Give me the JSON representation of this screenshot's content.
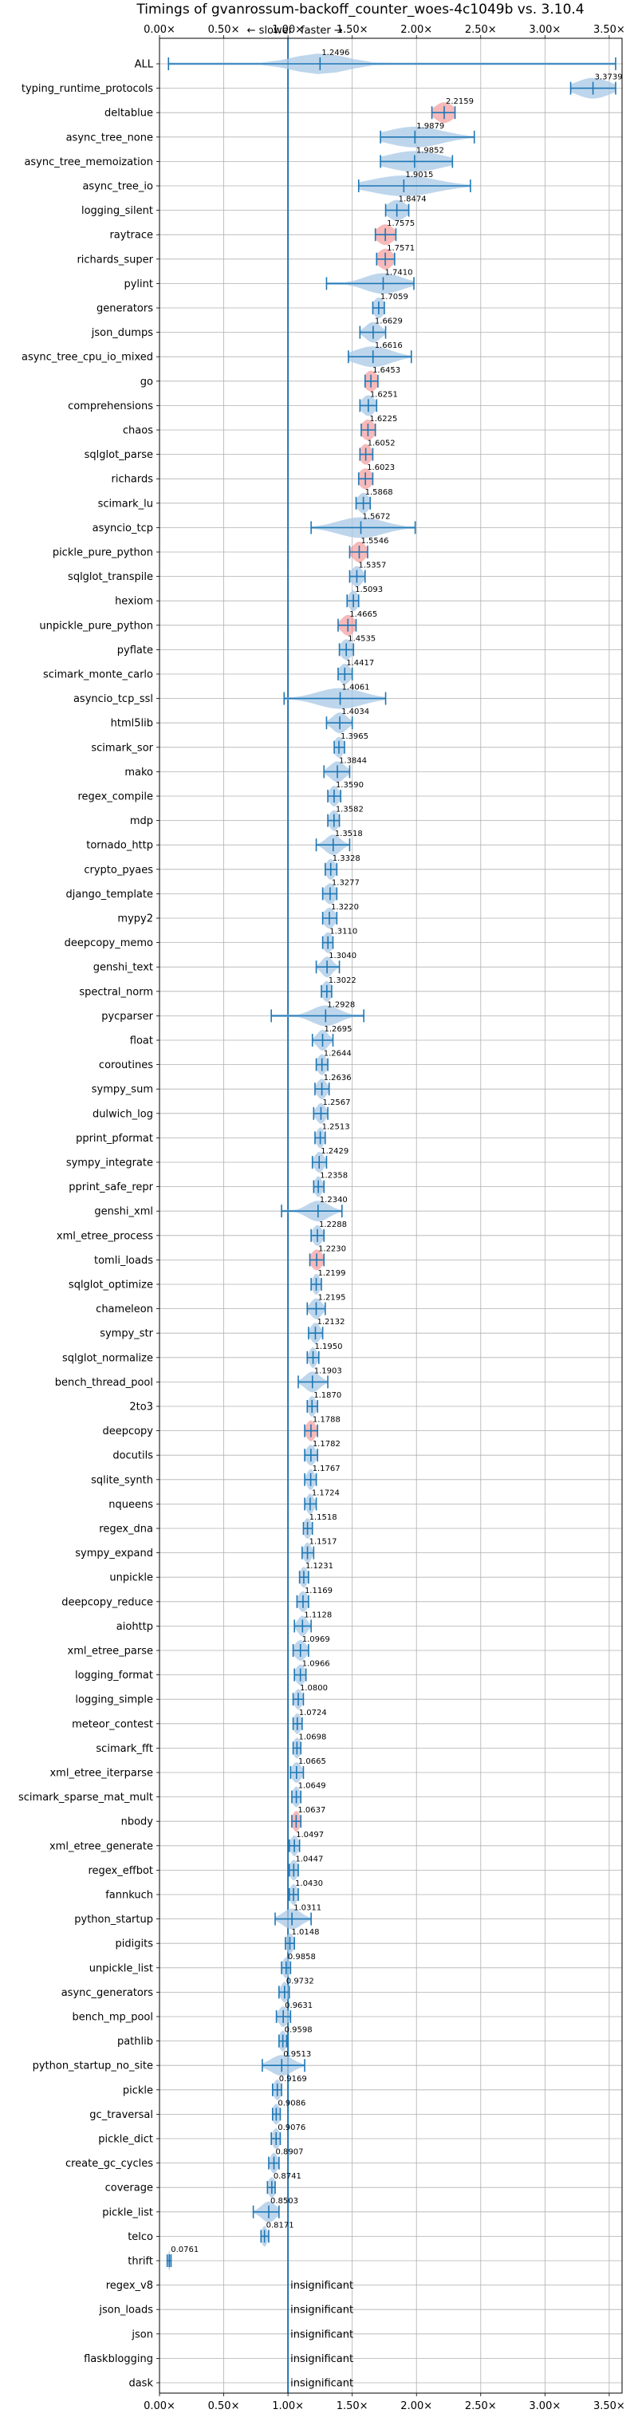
{
  "chart_data": {
    "type": "violin",
    "title": "Timings of gvanrossum-backoff_counter_woes-4c1049b vs. 3.10.4",
    "annotation_left": "← slower",
    "annotation_right": "faster →",
    "xlim": [
      0.0,
      3.6
    ],
    "xticks": [
      0.0,
      0.5,
      1.0,
      1.5,
      2.0,
      2.5,
      3.0,
      3.5
    ],
    "xtick_labels": [
      "0.00×",
      "0.50×",
      "1.00×",
      "1.50×",
      "2.00×",
      "2.50×",
      "3.00×",
      "3.50×"
    ],
    "reference_line": 1.0,
    "grid": true,
    "insignificant_label": "insignificant",
    "colors": {
      "violin": "#a8c8e6",
      "line": "#1f77b4",
      "highlight": "#f08080"
    },
    "benchmarks": [
      {
        "name": "ALL",
        "label": "1.2496",
        "value": 1.2496,
        "min": 0.07,
        "max": 3.55,
        "spread": 0.3,
        "highlight": false
      },
      {
        "name": "typing_runtime_protocols",
        "label": "3.3739",
        "value": 3.3739,
        "min": 3.2,
        "max": 3.55,
        "spread": 0.18,
        "highlight": false
      },
      {
        "name": "deltablue",
        "label": "2.2159",
        "value": 2.2159,
        "min": 2.12,
        "max": 2.3,
        "spread": 0.1,
        "highlight": true
      },
      {
        "name": "async_tree_none",
        "label": "1.9879",
        "value": 1.9879,
        "min": 1.72,
        "max": 2.45,
        "spread": 0.3,
        "highlight": false
      },
      {
        "name": "async_tree_memoization",
        "label": "1.9852",
        "value": 1.9852,
        "min": 1.72,
        "max": 2.28,
        "spread": 0.3,
        "highlight": false
      },
      {
        "name": "async_tree_io",
        "label": "1.9015",
        "value": 1.9015,
        "min": 1.55,
        "max": 2.42,
        "spread": 0.35,
        "highlight": false
      },
      {
        "name": "logging_silent",
        "label": "1.8474",
        "value": 1.8474,
        "min": 1.76,
        "max": 1.94,
        "spread": 0.1,
        "highlight": false
      },
      {
        "name": "raytrace",
        "label": "1.7575",
        "value": 1.7575,
        "min": 1.68,
        "max": 1.84,
        "spread": 0.09,
        "highlight": true
      },
      {
        "name": "richards_super",
        "label": "1.7571",
        "value": 1.7571,
        "min": 1.69,
        "max": 1.83,
        "spread": 0.08,
        "highlight": true
      },
      {
        "name": "pylint",
        "label": "1.7410",
        "value": 1.741,
        "min": 1.3,
        "max": 1.98,
        "spread": 0.2,
        "highlight": false
      },
      {
        "name": "generators",
        "label": "1.7059",
        "value": 1.7059,
        "min": 1.66,
        "max": 1.75,
        "spread": 0.06,
        "highlight": false
      },
      {
        "name": "json_dumps",
        "label": "1.6629",
        "value": 1.6629,
        "min": 1.56,
        "max": 1.76,
        "spread": 0.08,
        "highlight": false
      },
      {
        "name": "async_tree_cpu_io_mixed",
        "label": "1.6616",
        "value": 1.6616,
        "min": 1.47,
        "max": 1.96,
        "spread": 0.2,
        "highlight": false
      },
      {
        "name": "go",
        "label": "1.6453",
        "value": 1.6453,
        "min": 1.6,
        "max": 1.7,
        "spread": 0.07,
        "highlight": true
      },
      {
        "name": "comprehensions",
        "label": "1.6251",
        "value": 1.6251,
        "min": 1.56,
        "max": 1.69,
        "spread": 0.07,
        "highlight": false
      },
      {
        "name": "chaos",
        "label": "1.6225",
        "value": 1.6225,
        "min": 1.57,
        "max": 1.68,
        "spread": 0.07,
        "highlight": true
      },
      {
        "name": "sqlglot_parse",
        "label": "1.6052",
        "value": 1.6052,
        "min": 1.56,
        "max": 1.66,
        "spread": 0.06,
        "highlight": true
      },
      {
        "name": "richards",
        "label": "1.6023",
        "value": 1.6023,
        "min": 1.55,
        "max": 1.66,
        "spread": 0.07,
        "highlight": true
      },
      {
        "name": "scimark_lu",
        "label": "1.5868",
        "value": 1.5868,
        "min": 1.53,
        "max": 1.64,
        "spread": 0.06,
        "highlight": false
      },
      {
        "name": "asyncio_tcp",
        "label": "1.5672",
        "value": 1.5672,
        "min": 1.18,
        "max": 1.99,
        "spread": 0.25,
        "highlight": false
      },
      {
        "name": "pickle_pure_python",
        "label": "1.5546",
        "value": 1.5546,
        "min": 1.48,
        "max": 1.62,
        "spread": 0.07,
        "highlight": true
      },
      {
        "name": "sqlglot_transpile",
        "label": "1.5357",
        "value": 1.5357,
        "min": 1.48,
        "max": 1.6,
        "spread": 0.06,
        "highlight": false
      },
      {
        "name": "hexiom",
        "label": "1.5093",
        "value": 1.5093,
        "min": 1.46,
        "max": 1.55,
        "spread": 0.05,
        "highlight": false
      },
      {
        "name": "unpickle_pure_python",
        "label": "1.4665",
        "value": 1.4665,
        "min": 1.39,
        "max": 1.53,
        "spread": 0.07,
        "highlight": true
      },
      {
        "name": "pyflate",
        "label": "1.4535",
        "value": 1.4535,
        "min": 1.4,
        "max": 1.51,
        "spread": 0.06,
        "highlight": false
      },
      {
        "name": "scimark_monte_carlo",
        "label": "1.4417",
        "value": 1.4417,
        "min": 1.39,
        "max": 1.5,
        "spread": 0.06,
        "highlight": false
      },
      {
        "name": "asyncio_tcp_ssl",
        "label": "1.4061",
        "value": 1.4061,
        "min": 0.97,
        "max": 1.76,
        "spread": 0.25,
        "highlight": false
      },
      {
        "name": "html5lib",
        "label": "1.4034",
        "value": 1.4034,
        "min": 1.3,
        "max": 1.5,
        "spread": 0.08,
        "highlight": false
      },
      {
        "name": "scimark_sor",
        "label": "1.3965",
        "value": 1.3965,
        "min": 1.36,
        "max": 1.44,
        "spread": 0.05,
        "highlight": false
      },
      {
        "name": "mako",
        "label": "1.3844",
        "value": 1.3844,
        "min": 1.28,
        "max": 1.48,
        "spread": 0.08,
        "highlight": false
      },
      {
        "name": "regex_compile",
        "label": "1.3590",
        "value": 1.359,
        "min": 1.31,
        "max": 1.41,
        "spread": 0.05,
        "highlight": false
      },
      {
        "name": "mdp",
        "label": "1.3582",
        "value": 1.3582,
        "min": 1.31,
        "max": 1.4,
        "spread": 0.05,
        "highlight": false
      },
      {
        "name": "tornado_http",
        "label": "1.3518",
        "value": 1.3518,
        "min": 1.22,
        "max": 1.48,
        "spread": 0.08,
        "highlight": false
      },
      {
        "name": "crypto_pyaes",
        "label": "1.3328",
        "value": 1.3328,
        "min": 1.29,
        "max": 1.38,
        "spread": 0.05,
        "highlight": false
      },
      {
        "name": "django_template",
        "label": "1.3277",
        "value": 1.3277,
        "min": 1.27,
        "max": 1.38,
        "spread": 0.06,
        "highlight": false
      },
      {
        "name": "mypy2",
        "label": "1.3220",
        "value": 1.322,
        "min": 1.27,
        "max": 1.38,
        "spread": 0.06,
        "highlight": false
      },
      {
        "name": "deepcopy_memo",
        "label": "1.3110",
        "value": 1.311,
        "min": 1.27,
        "max": 1.35,
        "spread": 0.05,
        "highlight": false
      },
      {
        "name": "genshi_text",
        "label": "1.3040",
        "value": 1.304,
        "min": 1.22,
        "max": 1.4,
        "spread": 0.06,
        "highlight": false
      },
      {
        "name": "spectral_norm",
        "label": "1.3022",
        "value": 1.3022,
        "min": 1.26,
        "max": 1.34,
        "spread": 0.05,
        "highlight": false
      },
      {
        "name": "pycparser",
        "label": "1.2928",
        "value": 1.2928,
        "min": 0.87,
        "max": 1.59,
        "spread": 0.15,
        "highlight": false
      },
      {
        "name": "float",
        "label": "1.2695",
        "value": 1.2695,
        "min": 1.19,
        "max": 1.35,
        "spread": 0.06,
        "highlight": false
      },
      {
        "name": "coroutines",
        "label": "1.2644",
        "value": 1.2644,
        "min": 1.22,
        "max": 1.31,
        "spread": 0.05,
        "highlight": false
      },
      {
        "name": "sympy_sum",
        "label": "1.2636",
        "value": 1.2636,
        "min": 1.21,
        "max": 1.32,
        "spread": 0.05,
        "highlight": false
      },
      {
        "name": "dulwich_log",
        "label": "1.2567",
        "value": 1.2567,
        "min": 1.2,
        "max": 1.31,
        "spread": 0.05,
        "highlight": false
      },
      {
        "name": "pprint_pformat",
        "label": "1.2513",
        "value": 1.2513,
        "min": 1.21,
        "max": 1.29,
        "spread": 0.04,
        "highlight": false
      },
      {
        "name": "sympy_integrate",
        "label": "1.2429",
        "value": 1.2429,
        "min": 1.19,
        "max": 1.3,
        "spread": 0.05,
        "highlight": false
      },
      {
        "name": "pprint_safe_repr",
        "label": "1.2358",
        "value": 1.2358,
        "min": 1.2,
        "max": 1.28,
        "spread": 0.04,
        "highlight": false
      },
      {
        "name": "genshi_xml",
        "label": "1.2340",
        "value": 1.234,
        "min": 0.95,
        "max": 1.42,
        "spread": 0.12,
        "highlight": false
      },
      {
        "name": "xml_etree_process",
        "label": "1.2288",
        "value": 1.2288,
        "min": 1.18,
        "max": 1.28,
        "spread": 0.05,
        "highlight": false
      },
      {
        "name": "tomli_loads",
        "label": "1.2230",
        "value": 1.223,
        "min": 1.17,
        "max": 1.28,
        "spread": 0.06,
        "highlight": true
      },
      {
        "name": "sqlglot_optimize",
        "label": "1.2199",
        "value": 1.2199,
        "min": 1.18,
        "max": 1.26,
        "spread": 0.04,
        "highlight": false
      },
      {
        "name": "chameleon",
        "label": "1.2195",
        "value": 1.2195,
        "min": 1.15,
        "max": 1.29,
        "spread": 0.06,
        "highlight": false
      },
      {
        "name": "sympy_str",
        "label": "1.2132",
        "value": 1.2132,
        "min": 1.16,
        "max": 1.27,
        "spread": 0.05,
        "highlight": false
      },
      {
        "name": "sqlglot_normalize",
        "label": "1.1950",
        "value": 1.195,
        "min": 1.15,
        "max": 1.24,
        "spread": 0.04,
        "highlight": false
      },
      {
        "name": "bench_thread_pool",
        "label": "1.1903",
        "value": 1.1903,
        "min": 1.08,
        "max": 1.31,
        "spread": 0.08,
        "highlight": false
      },
      {
        "name": "2to3",
        "label": "1.1870",
        "value": 1.187,
        "min": 1.15,
        "max": 1.23,
        "spread": 0.04,
        "highlight": false
      },
      {
        "name": "deepcopy",
        "label": "1.1788",
        "value": 1.1788,
        "min": 1.13,
        "max": 1.23,
        "spread": 0.05,
        "highlight": true
      },
      {
        "name": "docutils",
        "label": "1.1782",
        "value": 1.1782,
        "min": 1.13,
        "max": 1.23,
        "spread": 0.05,
        "highlight": false
      },
      {
        "name": "sqlite_synth",
        "label": "1.1767",
        "value": 1.1767,
        "min": 1.13,
        "max": 1.22,
        "spread": 0.04,
        "highlight": false
      },
      {
        "name": "nqueens",
        "label": "1.1724",
        "value": 1.1724,
        "min": 1.13,
        "max": 1.22,
        "spread": 0.04,
        "highlight": false
      },
      {
        "name": "regex_dna",
        "label": "1.1518",
        "value": 1.1518,
        "min": 1.12,
        "max": 1.19,
        "spread": 0.04,
        "highlight": false
      },
      {
        "name": "sympy_expand",
        "label": "1.1517",
        "value": 1.1517,
        "min": 1.11,
        "max": 1.2,
        "spread": 0.04,
        "highlight": false
      },
      {
        "name": "unpickle",
        "label": "1.1231",
        "value": 1.1231,
        "min": 1.09,
        "max": 1.16,
        "spread": 0.04,
        "highlight": false
      },
      {
        "name": "deepcopy_reduce",
        "label": "1.1169",
        "value": 1.1169,
        "min": 1.07,
        "max": 1.16,
        "spread": 0.05,
        "highlight": false
      },
      {
        "name": "aiohttp",
        "label": "1.1128",
        "value": 1.1128,
        "min": 1.05,
        "max": 1.18,
        "spread": 0.05,
        "highlight": false
      },
      {
        "name": "xml_etree_parse",
        "label": "1.0969",
        "value": 1.0969,
        "min": 1.04,
        "max": 1.16,
        "spread": 0.06,
        "highlight": false
      },
      {
        "name": "logging_format",
        "label": "1.0966",
        "value": 1.0966,
        "min": 1.05,
        "max": 1.14,
        "spread": 0.05,
        "highlight": false
      },
      {
        "name": "logging_simple",
        "label": "1.0800",
        "value": 1.08,
        "min": 1.04,
        "max": 1.12,
        "spread": 0.04,
        "highlight": false
      },
      {
        "name": "meteor_contest",
        "label": "1.0724",
        "value": 1.0724,
        "min": 1.04,
        "max": 1.11,
        "spread": 0.04,
        "highlight": false
      },
      {
        "name": "scimark_fft",
        "label": "1.0698",
        "value": 1.0698,
        "min": 1.04,
        "max": 1.1,
        "spread": 0.04,
        "highlight": false
      },
      {
        "name": "xml_etree_iterparse",
        "label": "1.0665",
        "value": 1.0665,
        "min": 1.02,
        "max": 1.12,
        "spread": 0.05,
        "highlight": false
      },
      {
        "name": "scimark_sparse_mat_mult",
        "label": "1.0649",
        "value": 1.0649,
        "min": 1.03,
        "max": 1.1,
        "spread": 0.04,
        "highlight": false
      },
      {
        "name": "nbody",
        "label": "1.0637",
        "value": 1.0637,
        "min": 1.03,
        "max": 1.1,
        "spread": 0.04,
        "highlight": true
      },
      {
        "name": "xml_etree_generate",
        "label": "1.0497",
        "value": 1.0497,
        "min": 1.01,
        "max": 1.09,
        "spread": 0.04,
        "highlight": false
      },
      {
        "name": "regex_effbot",
        "label": "1.0447",
        "value": 1.0447,
        "min": 1.01,
        "max": 1.08,
        "spread": 0.04,
        "highlight": false
      },
      {
        "name": "fannkuch",
        "label": "1.0430",
        "value": 1.043,
        "min": 1.01,
        "max": 1.08,
        "spread": 0.04,
        "highlight": false
      },
      {
        "name": "python_startup",
        "label": "1.0311",
        "value": 1.0311,
        "min": 0.9,
        "max": 1.18,
        "spread": 0.1,
        "highlight": false
      },
      {
        "name": "pidigits",
        "label": "1.0148",
        "value": 1.0148,
        "min": 0.98,
        "max": 1.05,
        "spread": 0.04,
        "highlight": false
      },
      {
        "name": "unpickle_list",
        "label": "0.9858",
        "value": 0.9858,
        "min": 0.95,
        "max": 1.02,
        "spread": 0.04,
        "highlight": false
      },
      {
        "name": "async_generators",
        "label": "0.9732",
        "value": 0.9732,
        "min": 0.93,
        "max": 1.01,
        "spread": 0.04,
        "highlight": false
      },
      {
        "name": "bench_mp_pool",
        "label": "0.9631",
        "value": 0.9631,
        "min": 0.91,
        "max": 1.02,
        "spread": 0.05,
        "highlight": false
      },
      {
        "name": "pathlib",
        "label": "0.9598",
        "value": 0.9598,
        "min": 0.93,
        "max": 0.99,
        "spread": 0.04,
        "highlight": false
      },
      {
        "name": "python_startup_no_site",
        "label": "0.9513",
        "value": 0.9513,
        "min": 0.8,
        "max": 1.13,
        "spread": 0.12,
        "highlight": false
      },
      {
        "name": "pickle",
        "label": "0.9169",
        "value": 0.9169,
        "min": 0.88,
        "max": 0.95,
        "spread": 0.04,
        "highlight": false
      },
      {
        "name": "gc_traversal",
        "label": "0.9086",
        "value": 0.9086,
        "min": 0.88,
        "max": 0.94,
        "spread": 0.04,
        "highlight": false
      },
      {
        "name": "pickle_dict",
        "label": "0.9076",
        "value": 0.9076,
        "min": 0.87,
        "max": 0.94,
        "spread": 0.04,
        "highlight": false
      },
      {
        "name": "create_gc_cycles",
        "label": "0.8907",
        "value": 0.8907,
        "min": 0.85,
        "max": 0.93,
        "spread": 0.04,
        "highlight": false
      },
      {
        "name": "coverage",
        "label": "0.8741",
        "value": 0.8741,
        "min": 0.84,
        "max": 0.9,
        "spread": 0.04,
        "highlight": false
      },
      {
        "name": "pickle_list",
        "label": "0.8503",
        "value": 0.8503,
        "min": 0.73,
        "max": 0.93,
        "spread": 0.08,
        "highlight": false
      },
      {
        "name": "telco",
        "label": "0.8171",
        "value": 0.8171,
        "min": 0.79,
        "max": 0.85,
        "spread": 0.03,
        "highlight": false
      },
      {
        "name": "thrift",
        "label": "0.0761",
        "value": 0.0761,
        "min": 0.06,
        "max": 0.09,
        "spread": 0.01,
        "highlight": false
      },
      {
        "name": "regex_v8",
        "insignificant": true
      },
      {
        "name": "json_loads",
        "insignificant": true
      },
      {
        "name": "json",
        "insignificant": true
      },
      {
        "name": "flaskblogging",
        "insignificant": true
      },
      {
        "name": "dask",
        "insignificant": true
      }
    ]
  }
}
